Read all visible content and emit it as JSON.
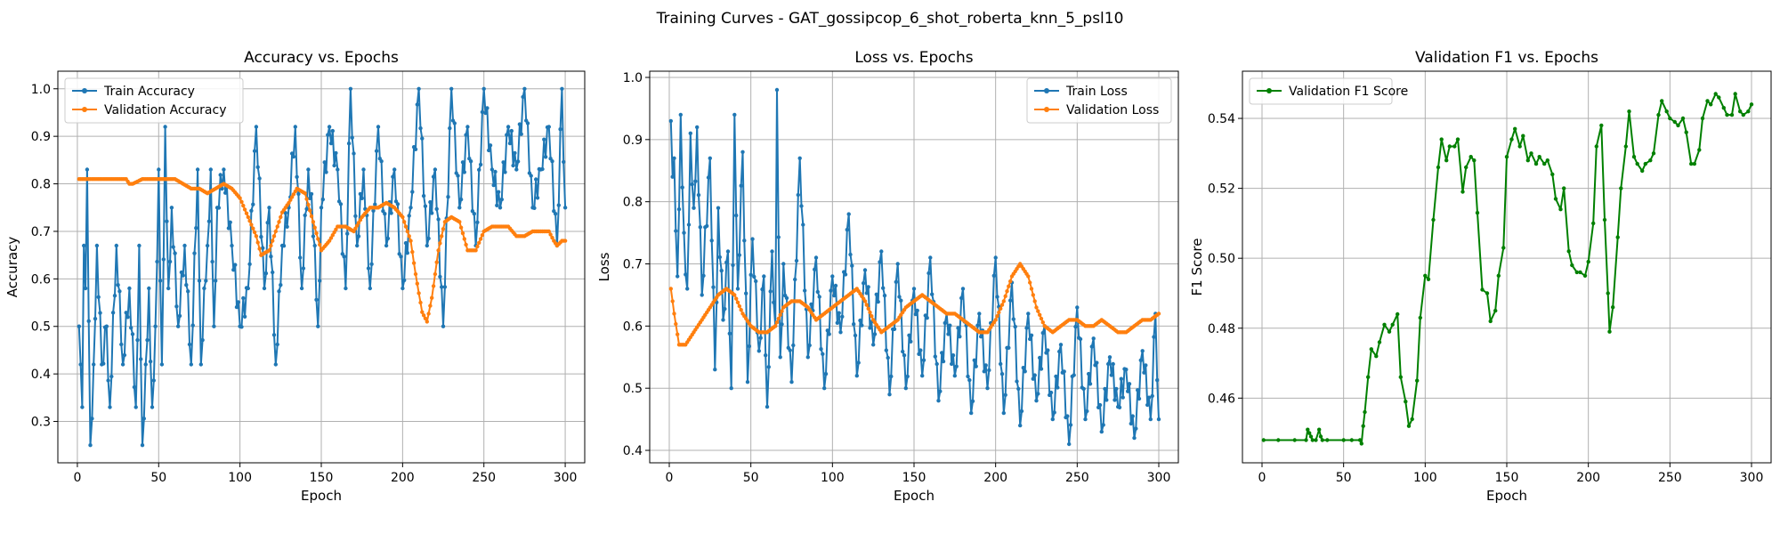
{
  "figure_title": "Training Curves - GAT_gossipcop_6_shot_roberta_knn_5_psl10",
  "colors": {
    "train": "#1f77b4",
    "validation": "#ff7f0e",
    "f1": "#008000",
    "grid": "#b0b0b0"
  },
  "chart_data": [
    {
      "type": "line",
      "title": "Accuracy vs. Epochs",
      "xlabel": "Epoch",
      "ylabel": "Accuracy",
      "xlim": [
        -12,
        312
      ],
      "ylim": [
        0.213,
        1.037
      ],
      "xticks": [
        0,
        50,
        100,
        150,
        200,
        250,
        300
      ],
      "yticks": [
        0.3,
        0.4,
        0.5,
        0.6,
        0.7,
        0.8,
        0.9,
        1.0
      ],
      "ytick_labels": [
        "0.3",
        "0.4",
        "0.5",
        "0.6",
        "0.7",
        "0.8",
        "0.9",
        "1.0"
      ],
      "grid": true,
      "legend": "upper-left",
      "series": [
        {
          "name": "Train Accuracy",
          "color": "#1f77b4",
          "kind": "jagged",
          "x": [
            1,
            2,
            3,
            4,
            5,
            6,
            8,
            10,
            12,
            15,
            18,
            20,
            24,
            28,
            32,
            36,
            38,
            40,
            42,
            44,
            46,
            48,
            50,
            52,
            54,
            56,
            58,
            62,
            66,
            70,
            74,
            76,
            78,
            80,
            82,
            84,
            86,
            90,
            95,
            100,
            105,
            110,
            115,
            118,
            122,
            126,
            130,
            134,
            138,
            142,
            146,
            148,
            150,
            155,
            160,
            165,
            168,
            172,
            176,
            180,
            185,
            190,
            195,
            200,
            205,
            210,
            215,
            220,
            225,
            230,
            235,
            240,
            245,
            250,
            255,
            260,
            265,
            270,
            275,
            280,
            285,
            290,
            295,
            298,
            300
          ],
          "y": [
            0.5,
            0.42,
            0.33,
            0.67,
            0.58,
            0.83,
            0.25,
            0.42,
            0.67,
            0.42,
            0.5,
            0.33,
            0.67,
            0.42,
            0.58,
            0.33,
            0.67,
            0.25,
            0.42,
            0.58,
            0.33,
            0.5,
            0.83,
            0.42,
            0.92,
            0.58,
            0.75,
            0.5,
            0.67,
            0.42,
            0.83,
            0.42,
            0.58,
            0.67,
            0.83,
            0.5,
            0.75,
            0.83,
            0.67,
            0.5,
            0.58,
            0.92,
            0.58,
            0.75,
            0.42,
            0.67,
            0.75,
            0.92,
            0.58,
            0.83,
            0.67,
            0.5,
            0.75,
            0.92,
            0.83,
            0.58,
            1.0,
            0.67,
            0.83,
            0.58,
            0.92,
            0.67,
            0.83,
            0.58,
            0.75,
            1.0,
            0.67,
            0.83,
            0.5,
            1.0,
            0.75,
            0.92,
            0.67,
            1.0,
            0.83,
            0.75,
            0.92,
            0.83,
            1.0,
            0.75,
            0.83,
            0.92,
            0.67,
            1.0,
            0.75
          ]
        },
        {
          "name": "Validation Accuracy",
          "color": "#ff7f0e",
          "kind": "smooth",
          "x": [
            1,
            10,
            20,
            30,
            32,
            34,
            40,
            50,
            60,
            65,
            70,
            75,
            80,
            85,
            90,
            95,
            100,
            105,
            110,
            113,
            118,
            122,
            126,
            130,
            135,
            140,
            145,
            150,
            155,
            160,
            165,
            170,
            175,
            180,
            185,
            190,
            195,
            200,
            205,
            208,
            212,
            215,
            218,
            222,
            226,
            230,
            235,
            240,
            245,
            250,
            255,
            260,
            265,
            270,
            275,
            280,
            285,
            290,
            293,
            295,
            298,
            300
          ],
          "y": [
            0.81,
            0.81,
            0.81,
            0.81,
            0.8,
            0.8,
            0.81,
            0.81,
            0.81,
            0.8,
            0.79,
            0.79,
            0.78,
            0.79,
            0.8,
            0.79,
            0.77,
            0.73,
            0.69,
            0.65,
            0.66,
            0.7,
            0.74,
            0.76,
            0.79,
            0.78,
            0.72,
            0.66,
            0.68,
            0.71,
            0.71,
            0.7,
            0.73,
            0.75,
            0.75,
            0.76,
            0.75,
            0.73,
            0.68,
            0.61,
            0.53,
            0.51,
            0.56,
            0.66,
            0.72,
            0.73,
            0.72,
            0.66,
            0.66,
            0.7,
            0.71,
            0.71,
            0.71,
            0.69,
            0.69,
            0.7,
            0.7,
            0.7,
            0.68,
            0.67,
            0.68,
            0.68
          ]
        }
      ]
    },
    {
      "type": "line",
      "title": "Loss vs. Epochs",
      "xlabel": "Epoch",
      "ylabel": "Loss",
      "xlim": [
        -12,
        312
      ],
      "ylim": [
        0.38,
        1.01
      ],
      "xticks": [
        0,
        50,
        100,
        150,
        200,
        250,
        300
      ],
      "yticks": [
        0.4,
        0.5,
        0.6,
        0.7,
        0.8,
        0.9,
        1.0
      ],
      "ytick_labels": [
        "0.4",
        "0.5",
        "0.6",
        "0.7",
        "0.8",
        "0.9",
        "1.0"
      ],
      "grid": true,
      "legend": "upper-right",
      "series": [
        {
          "name": "Train Loss",
          "color": "#1f77b4",
          "kind": "jagged",
          "x": [
            1,
            2,
            3,
            5,
            7,
            9,
            11,
            13,
            15,
            17,
            20,
            25,
            28,
            30,
            33,
            36,
            38,
            40,
            42,
            45,
            48,
            51,
            55,
            58,
            60,
            63,
            65,
            66,
            68,
            70,
            75,
            80,
            85,
            90,
            95,
            100,
            105,
            110,
            115,
            120,
            125,
            130,
            135,
            140,
            145,
            150,
            155,
            160,
            165,
            170,
            175,
            180,
            185,
            190,
            195,
            200,
            205,
            210,
            215,
            220,
            225,
            230,
            235,
            240,
            245,
            250,
            255,
            260,
            265,
            270,
            275,
            280,
            285,
            290,
            295,
            298,
            300
          ],
          "y": [
            0.93,
            0.84,
            0.87,
            0.68,
            0.94,
            0.75,
            0.66,
            0.91,
            0.79,
            0.92,
            0.65,
            0.87,
            0.53,
            0.79,
            0.61,
            0.72,
            0.5,
            0.94,
            0.66,
            0.88,
            0.51,
            0.74,
            0.56,
            0.68,
            0.47,
            0.72,
            0.6,
            0.98,
            0.55,
            0.7,
            0.51,
            0.87,
            0.55,
            0.71,
            0.5,
            0.68,
            0.59,
            0.78,
            0.52,
            0.69,
            0.57,
            0.72,
            0.49,
            0.7,
            0.5,
            0.66,
            0.52,
            0.71,
            0.48,
            0.62,
            0.52,
            0.66,
            0.46,
            0.62,
            0.5,
            0.71,
            0.46,
            0.67,
            0.44,
            0.62,
            0.48,
            0.6,
            0.45,
            0.57,
            0.41,
            0.63,
            0.45,
            0.58,
            0.43,
            0.55,
            0.47,
            0.53,
            0.42,
            0.56,
            0.45,
            0.62,
            0.45
          ]
        },
        {
          "name": "Validation Loss",
          "color": "#ff7f0e",
          "kind": "smooth",
          "x": [
            1,
            3,
            6,
            10,
            15,
            20,
            25,
            30,
            35,
            40,
            45,
            50,
            55,
            60,
            65,
            70,
            75,
            80,
            85,
            90,
            95,
            100,
            105,
            110,
            115,
            120,
            125,
            130,
            135,
            140,
            145,
            150,
            155,
            160,
            165,
            170,
            175,
            180,
            185,
            190,
            195,
            200,
            205,
            210,
            215,
            220,
            225,
            230,
            235,
            240,
            245,
            250,
            255,
            260,
            265,
            270,
            275,
            280,
            285,
            290,
            295,
            300
          ],
          "y": [
            0.66,
            0.62,
            0.57,
            0.57,
            0.59,
            0.61,
            0.63,
            0.65,
            0.66,
            0.65,
            0.62,
            0.6,
            0.59,
            0.59,
            0.6,
            0.63,
            0.64,
            0.64,
            0.63,
            0.61,
            0.62,
            0.63,
            0.64,
            0.65,
            0.66,
            0.64,
            0.61,
            0.59,
            0.6,
            0.61,
            0.63,
            0.64,
            0.65,
            0.64,
            0.63,
            0.62,
            0.62,
            0.61,
            0.6,
            0.59,
            0.59,
            0.61,
            0.64,
            0.68,
            0.7,
            0.68,
            0.63,
            0.6,
            0.59,
            0.6,
            0.61,
            0.61,
            0.6,
            0.6,
            0.61,
            0.6,
            0.59,
            0.59,
            0.6,
            0.61,
            0.61,
            0.62
          ]
        }
      ]
    },
    {
      "type": "line",
      "title": "Validation F1 vs. Epochs",
      "xlabel": "Epoch",
      "ylabel": "F1 Score",
      "xlim": [
        -12,
        312
      ],
      "ylim": [
        0.4415,
        0.5535
      ],
      "xticks": [
        0,
        50,
        100,
        150,
        200,
        250,
        300
      ],
      "yticks": [
        0.46,
        0.48,
        0.5,
        0.52,
        0.54
      ],
      "ytick_labels": [
        "0.46",
        "0.48",
        "0.50",
        "0.52",
        "0.54"
      ],
      "grid": true,
      "legend": "upper-left",
      "series": [
        {
          "name": "Validation F1 Score",
          "color": "#008000",
          "kind": "line",
          "x": [
            1,
            10,
            20,
            27,
            28,
            29,
            30,
            31,
            33,
            35,
            36,
            37,
            40,
            50,
            55,
            60,
            61,
            62,
            63,
            65,
            67,
            70,
            72,
            75,
            78,
            80,
            83,
            85,
            88,
            90,
            92,
            95,
            97,
            100,
            102,
            105,
            108,
            110,
            113,
            115,
            118,
            120,
            123,
            125,
            128,
            130,
            132,
            135,
            138,
            140,
            143,
            145,
            148,
            150,
            153,
            155,
            158,
            160,
            163,
            165,
            168,
            170,
            173,
            175,
            178,
            180,
            183,
            185,
            188,
            190,
            193,
            195,
            198,
            200,
            203,
            205,
            208,
            210,
            212,
            213,
            215,
            218,
            220,
            223,
            225,
            228,
            230,
            233,
            235,
            238,
            240,
            243,
            245,
            248,
            250,
            253,
            255,
            258,
            260,
            263,
            265,
            268,
            270,
            273,
            275,
            278,
            280,
            283,
            285,
            288,
            290,
            293,
            295,
            298,
            300
          ],
          "y": [
            0.448,
            0.448,
            0.448,
            0.448,
            0.451,
            0.45,
            0.449,
            0.448,
            0.448,
            0.451,
            0.449,
            0.448,
            0.448,
            0.448,
            0.448,
            0.448,
            0.447,
            0.452,
            0.456,
            0.466,
            0.474,
            0.472,
            0.476,
            0.481,
            0.479,
            0.481,
            0.484,
            0.466,
            0.459,
            0.452,
            0.454,
            0.465,
            0.483,
            0.495,
            0.494,
            0.511,
            0.526,
            0.534,
            0.528,
            0.532,
            0.532,
            0.534,
            0.519,
            0.526,
            0.529,
            0.528,
            0.513,
            0.491,
            0.49,
            0.482,
            0.485,
            0.495,
            0.503,
            0.529,
            0.534,
            0.537,
            0.532,
            0.535,
            0.528,
            0.53,
            0.527,
            0.529,
            0.527,
            0.528,
            0.524,
            0.517,
            0.514,
            0.52,
            0.502,
            0.498,
            0.496,
            0.496,
            0.495,
            0.499,
            0.51,
            0.532,
            0.538,
            0.511,
            0.49,
            0.479,
            0.486,
            0.506,
            0.52,
            0.532,
            0.542,
            0.529,
            0.527,
            0.525,
            0.527,
            0.528,
            0.53,
            0.541,
            0.545,
            0.542,
            0.54,
            0.539,
            0.538,
            0.54,
            0.536,
            0.527,
            0.527,
            0.531,
            0.54,
            0.545,
            0.544,
            0.547,
            0.546,
            0.543,
            0.541,
            0.541,
            0.547,
            0.542,
            0.541,
            0.542,
            0.544
          ]
        }
      ]
    }
  ]
}
